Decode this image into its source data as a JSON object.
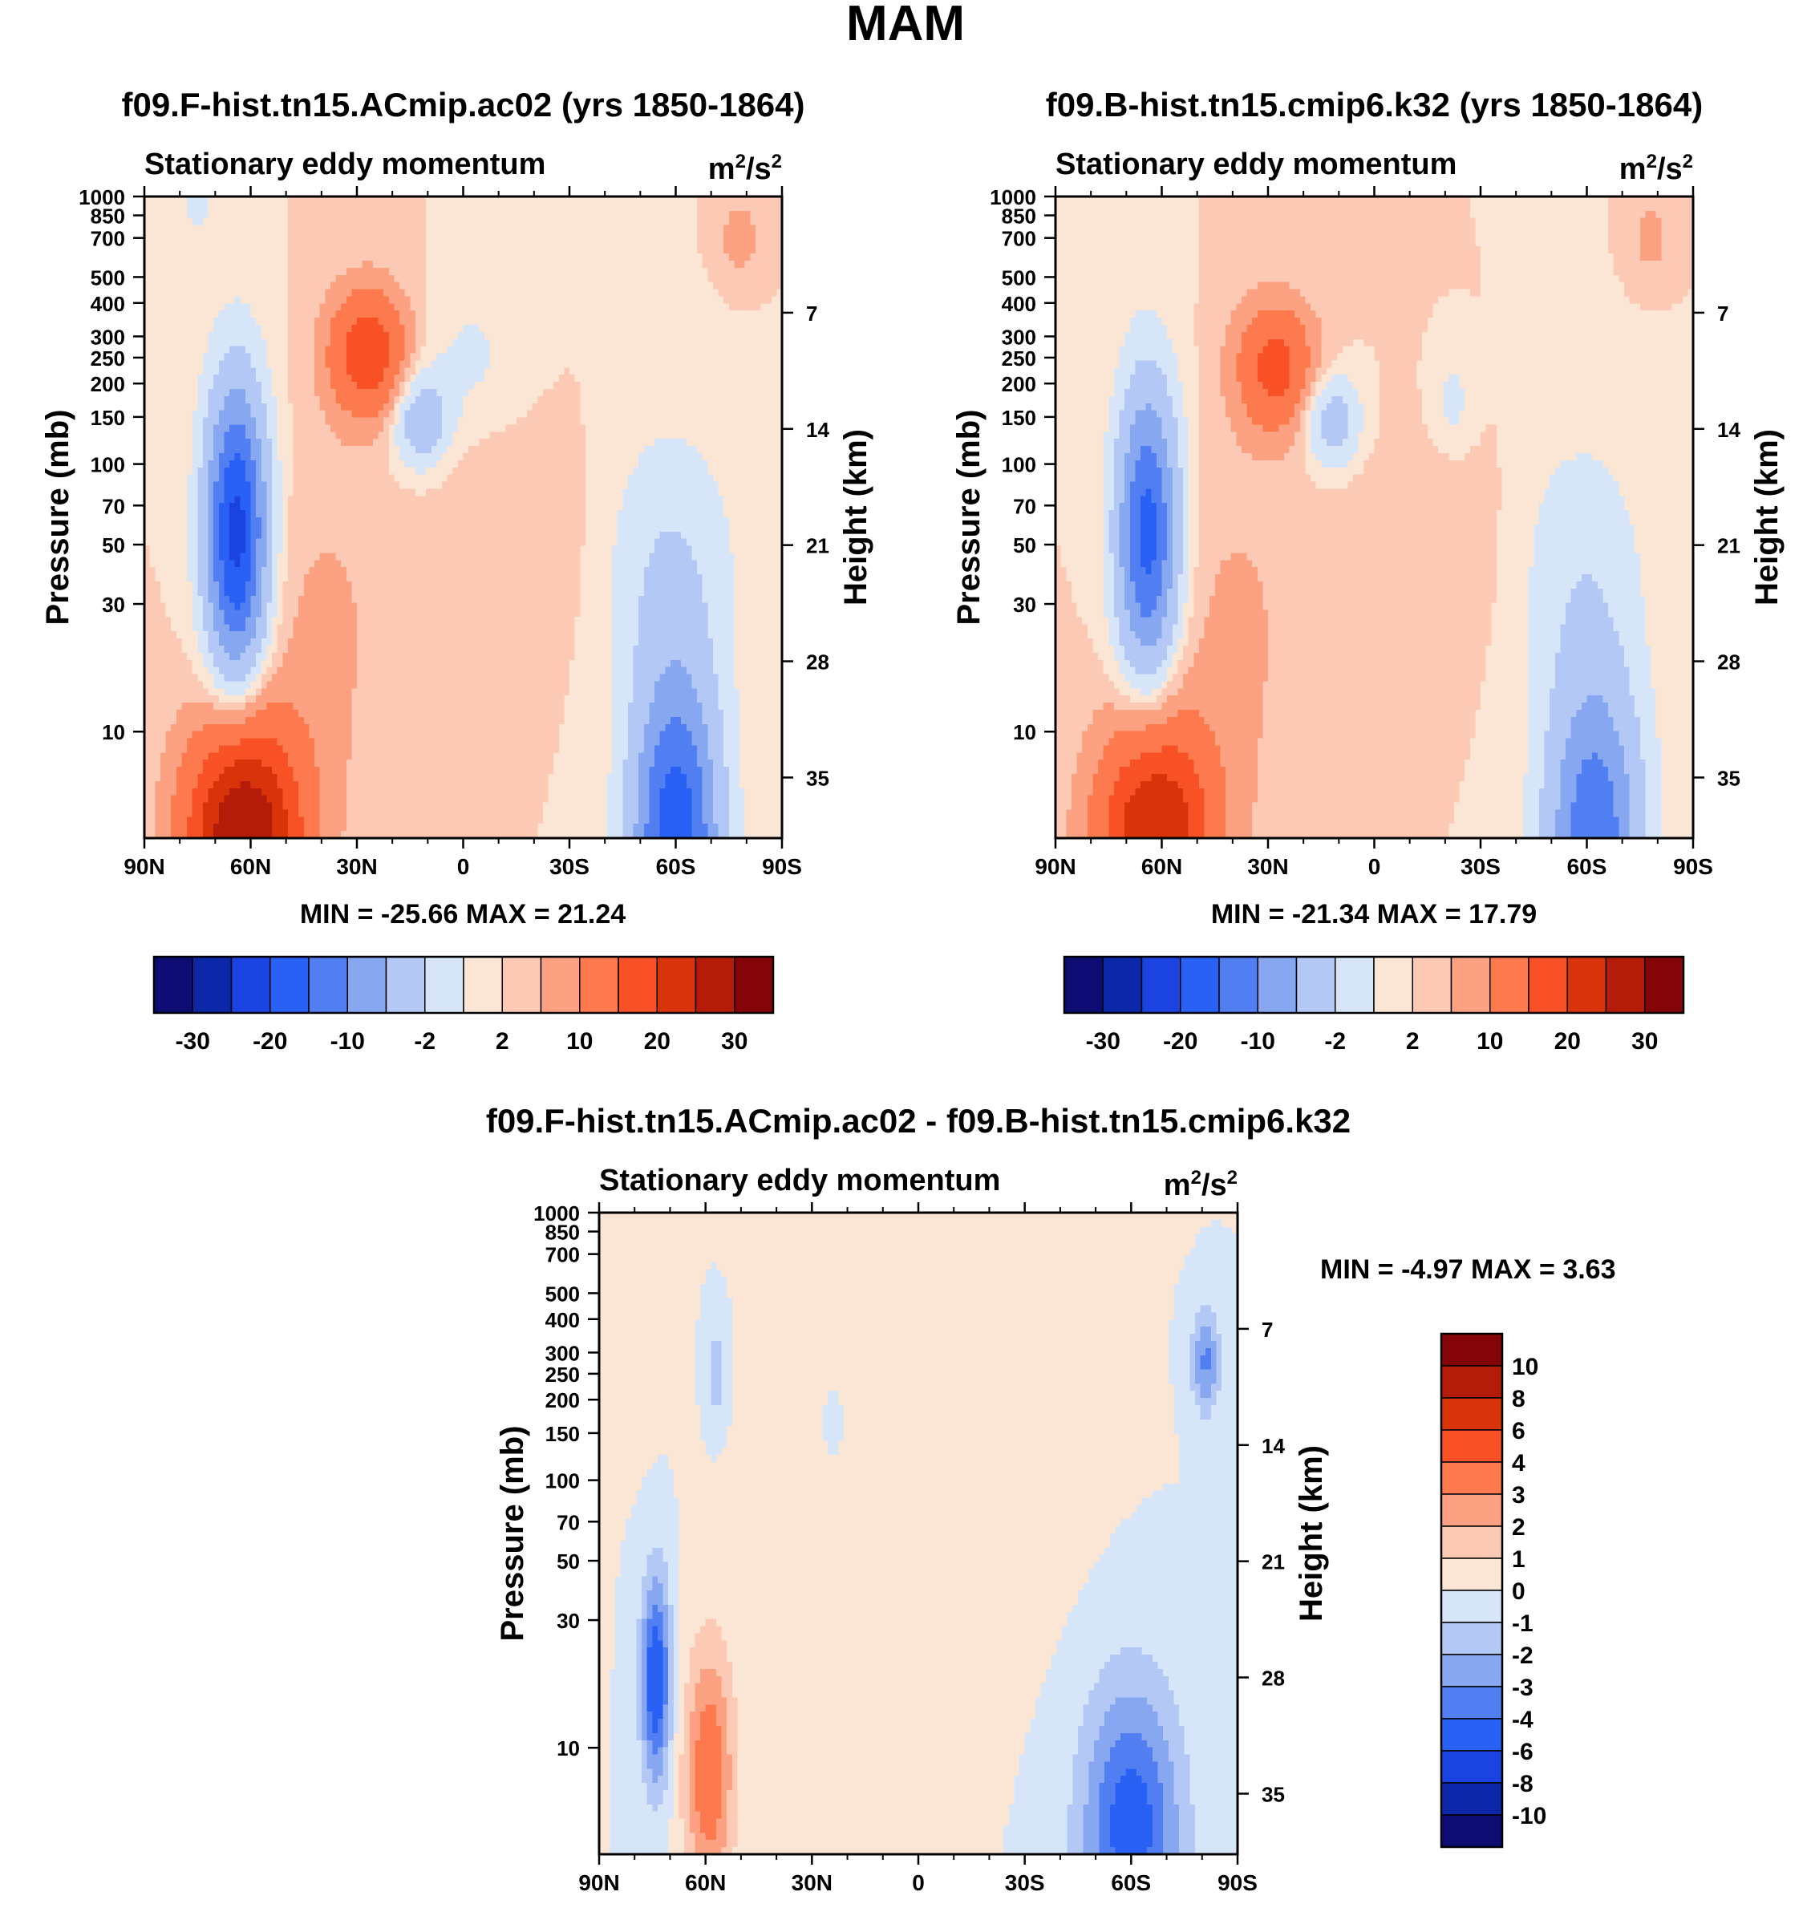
{
  "page_title": "MAM",
  "chart_data": [
    {
      "type": "heatmap",
      "title": "f09.F-hist.tn15.ACmip.ac02 (yrs 1850-1864)",
      "subtitle_left": "Stationary eddy momentum",
      "units_base": "m",
      "units_sup1": "2",
      "units_mid": "/s",
      "units_sup2": "2",
      "xlabel": "",
      "ylabel": "Pressure (mb)",
      "ylabel_right": "Height (km)",
      "x_ticks": [
        "90N",
        "60N",
        "30N",
        "0",
        "30S",
        "60S",
        "90S"
      ],
      "x_tick_values": [
        90,
        60,
        30,
        0,
        -30,
        -60,
        -90
      ],
      "y_ticks": [
        "10",
        "30",
        "50",
        "70",
        "100",
        "150",
        "200",
        "250",
        "300",
        "400",
        "500",
        "700",
        "850",
        "1000"
      ],
      "y_tick_values": [
        10,
        30,
        50,
        70,
        100,
        150,
        200,
        250,
        300,
        400,
        500,
        700,
        850,
        1000
      ],
      "height_ticks": [
        "35",
        "28",
        "21",
        "14",
        "7"
      ],
      "height_tick_values": [
        35,
        28,
        21,
        14,
        7
      ],
      "ylim": [
        1000,
        4
      ],
      "min_label": "MIN = -25.66",
      "max_label": "MAX =  21.24",
      "min": -25.66,
      "max": 21.24,
      "features": [
        {
          "lat": 60,
          "p": 5,
          "value": 21.24
        },
        {
          "lat": 60,
          "p": 60,
          "value": -25.66
        },
        {
          "lat": 27,
          "p": 250,
          "value": 12
        },
        {
          "lat": 10,
          "p": 150,
          "value": -8
        },
        {
          "lat": -60,
          "p": 5,
          "value": -22
        }
      ]
    },
    {
      "type": "heatmap",
      "title": "f09.B-hist.tn15.cmip6.k32 (yrs 1850-1864)",
      "subtitle_left": "Stationary eddy momentum",
      "units_base": "m",
      "units_sup1": "2",
      "units_mid": "/s",
      "units_sup2": "2",
      "xlabel": "",
      "ylabel": "Pressure (mb)",
      "ylabel_right": "Height (km)",
      "x_ticks": [
        "90N",
        "60N",
        "30N",
        "0",
        "30S",
        "60S",
        "90S"
      ],
      "x_tick_values": [
        90,
        60,
        30,
        0,
        -30,
        -60,
        -90
      ],
      "y_ticks": [
        "10",
        "30",
        "50",
        "70",
        "100",
        "150",
        "200",
        "250",
        "300",
        "400",
        "500",
        "700",
        "850",
        "1000"
      ],
      "y_tick_values": [
        10,
        30,
        50,
        70,
        100,
        150,
        200,
        250,
        300,
        400,
        500,
        700,
        850,
        1000
      ],
      "height_ticks": [
        "35",
        "28",
        "21",
        "14",
        "7"
      ],
      "height_tick_values": [
        35,
        28,
        21,
        14,
        7
      ],
      "ylim": [
        1000,
        4
      ],
      "min_label": "MIN = -21.34",
      "max_label": "MAX =  17.79",
      "min": -21.34,
      "max": 17.79,
      "features": [
        {
          "lat": 60,
          "p": 5,
          "value": 17.79
        },
        {
          "lat": 60,
          "p": 60,
          "value": -21.34
        },
        {
          "lat": 27,
          "p": 230,
          "value": 11
        },
        {
          "lat": 10,
          "p": 150,
          "value": -7
        },
        {
          "lat": -60,
          "p": 5,
          "value": -18
        }
      ]
    },
    {
      "type": "heatmap",
      "title": "f09.F-hist.tn15.ACmip.ac02 - f09.B-hist.tn15.cmip6.k32",
      "subtitle_left": "Stationary eddy momentum",
      "units_base": "m",
      "units_sup1": "2",
      "units_mid": "/s",
      "units_sup2": "2",
      "xlabel": "",
      "ylabel": "Pressure (mb)",
      "ylabel_right": "Height (km)",
      "x_ticks": [
        "90N",
        "60N",
        "30N",
        "0",
        "30S",
        "60S",
        "90S"
      ],
      "x_tick_values": [
        90,
        60,
        30,
        0,
        -30,
        -60,
        -90
      ],
      "y_ticks": [
        "10",
        "30",
        "50",
        "70",
        "100",
        "150",
        "200",
        "250",
        "300",
        "400",
        "500",
        "700",
        "850",
        "1000"
      ],
      "y_tick_values": [
        10,
        30,
        50,
        70,
        100,
        150,
        200,
        250,
        300,
        400,
        500,
        700,
        850,
        1000
      ],
      "height_ticks": [
        "35",
        "28",
        "21",
        "14",
        "7"
      ],
      "height_tick_values": [
        35,
        28,
        21,
        14,
        7
      ],
      "ylim": [
        1000,
        4
      ],
      "min_label": "MIN =  -4.97",
      "max_label": "MAX =   3.63",
      "min": -4.97,
      "max": 3.63,
      "features": [
        {
          "lat": 75,
          "p": 20,
          "value": -4.97
        },
        {
          "lat": 60,
          "p": 8,
          "value": 3.63
        },
        {
          "lat": -60,
          "p": 5,
          "value": -4.5
        },
        {
          "lat": -80,
          "p": 280,
          "value": -3
        }
      ]
    }
  ],
  "colorbar_top": {
    "labels": [
      "-30",
      "-20",
      "-10",
      "-2",
      "2",
      "10",
      "20",
      "30"
    ],
    "colors": [
      "#0d0c73",
      "#0c27a8",
      "#1a43e2",
      "#2a61f5",
      "#517ff2",
      "#87a7f1",
      "#b3c8f5",
      "#d6e5f8",
      "#fbe6d5",
      "#fcc9b4",
      "#fca282",
      "#fd7a4e",
      "#f85125",
      "#d8330b",
      "#b41c09",
      "#840508"
    ]
  },
  "colorbar_diff": {
    "labels": [
      "10",
      "8",
      "6",
      "4",
      "3",
      "2",
      "1",
      "0",
      "-1",
      "-2",
      "-3",
      "-4",
      "-6",
      "-8",
      "-10"
    ],
    "colors": [
      "#840508",
      "#b41c09",
      "#d8330b",
      "#f85125",
      "#fd7a4e",
      "#fca282",
      "#fcc9b4",
      "#fbe6d5",
      "#d6e5f8",
      "#b3c8f5",
      "#87a7f1",
      "#517ff2",
      "#2a61f5",
      "#1a43e2",
      "#0c27a8",
      "#0d0c73"
    ]
  }
}
